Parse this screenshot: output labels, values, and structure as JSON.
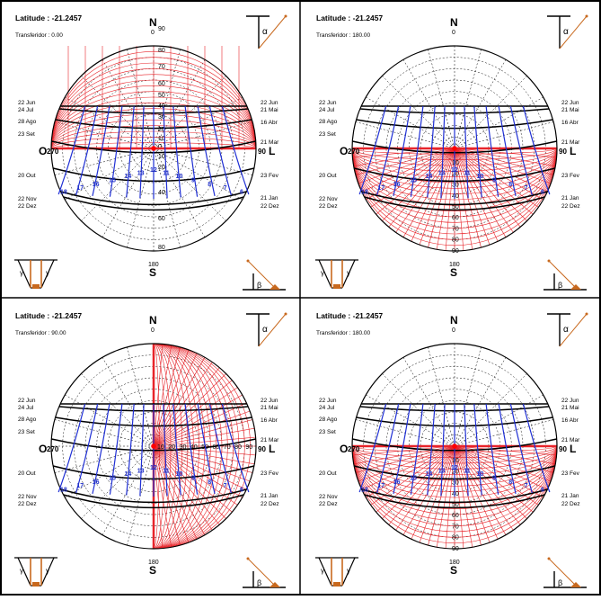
{
  "colors": {
    "frame": "#000000",
    "dashed_grid": "#000000",
    "red_protractor": "#e8242a",
    "red_dot": "#ff0000",
    "blue_hours": "#1f2fd4",
    "blue_text": "#2030c8",
    "icon_fill": "#c8691e",
    "background": "#ffffff"
  },
  "labels": {
    "north": "N",
    "south": "S",
    "west": "O",
    "east": "L",
    "north_deg": "0",
    "south_deg": "180",
    "west_deg": "270",
    "east_deg": "90",
    "alpha": "α",
    "beta": "β",
    "gamma": "γ"
  },
  "date_labels": {
    "left": [
      "22 Jun",
      "24 Jul",
      "28 Ago",
      "23 Set",
      "20 Out",
      "22 Nov",
      "22 Dez"
    ],
    "right": [
      "22 Jun",
      "21 Mai",
      "16 Abr",
      "21 Mar",
      "23 Fev",
      "21 Jan",
      "22 Dez"
    ]
  },
  "hour_labels": [
    "18",
    "17",
    "16",
    "15",
    "14",
    "13",
    "12",
    "11",
    "10",
    "9",
    "8",
    "7",
    "6"
  ],
  "panels": [
    {
      "latitude_label": "Latitude : -21.2457",
      "transferidor_label": "Transferidor : 0.00",
      "mode": "north",
      "scale_labels": [
        "90",
        "80",
        "70",
        "60",
        "50",
        "40",
        "30",
        "20",
        "10",
        "0",
        "10",
        "20",
        "40",
        "60",
        "80"
      ]
    },
    {
      "latitude_label": "Latitude : -21.2457",
      "transferidor_label": "Transferidor : 180.00",
      "mode": "south",
      "scale_labels": [
        "10",
        "20",
        "30",
        "40",
        "50",
        "60",
        "70",
        "80",
        "90"
      ]
    },
    {
      "latitude_label": "Latitude : -21.2457",
      "transferidor_label": "Transferidor : 90.00",
      "mode": "east",
      "scale_labels": [
        "10",
        "20",
        "30",
        "40",
        "50",
        "60",
        "70",
        "80",
        "90"
      ]
    },
    {
      "latitude_label": "Latitude : -21.2457",
      "transferidor_label": "Transferidor : 180.00",
      "mode": "south",
      "scale_labels": [
        "10",
        "20",
        "30",
        "40",
        "50",
        "60",
        "70",
        "80",
        "90"
      ]
    }
  ]
}
